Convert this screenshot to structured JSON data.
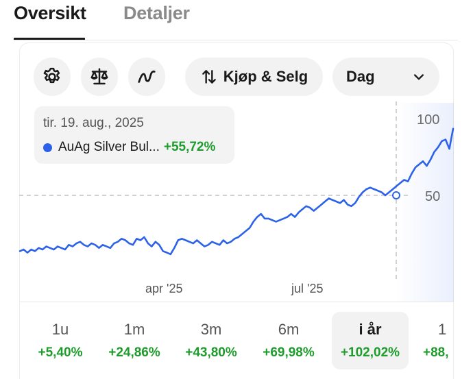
{
  "tabs": [
    {
      "label": "Oversikt",
      "active": true
    },
    {
      "label": "Detaljer",
      "active": false
    }
  ],
  "toolbar": {
    "settings_icon": "gear-icon",
    "indicator_icon": "scale-icon",
    "chart_type_icon": "line-chart-icon",
    "trade_label": "Kjøp & Selg",
    "trade_icon": "swap-arrows-icon",
    "period_label": "Dag",
    "period_icon": "chevron-down-icon"
  },
  "tooltip": {
    "date": "tir. 19. aug., 2025",
    "series_name": "AuAg Silver Bul...",
    "change": "+55,72%",
    "series_color": "#2c62e8"
  },
  "colors": {
    "line": "#2c62e8",
    "positive": "#1e9c2c"
  },
  "chart_data": {
    "type": "line",
    "x_ticks": [
      "apr '25",
      "jul '25"
    ],
    "y_ticks": [
      50,
      100
    ],
    "crosshair": {
      "date": "tir. 19. aug., 2025",
      "value": 50
    },
    "series": [
      {
        "name": "AuAg Silver Bul...",
        "values": [
          14,
          15,
          13,
          15,
          14,
          16,
          15,
          17,
          16,
          15,
          17,
          16,
          15,
          18,
          17,
          19,
          20,
          18,
          17,
          19,
          18,
          16,
          18,
          17,
          16,
          19,
          20,
          22,
          21,
          19,
          18,
          22,
          21,
          23,
          19,
          17,
          20,
          18,
          14,
          13,
          12,
          16,
          21,
          22,
          21,
          20,
          19,
          21,
          19,
          17,
          18,
          20,
          19,
          18,
          21,
          19,
          20,
          22,
          23,
          25,
          27,
          29,
          33,
          36,
          38,
          35,
          35,
          34,
          33,
          34,
          35,
          36,
          38,
          36,
          39,
          41,
          43,
          42,
          40,
          42,
          44,
          46,
          48,
          47,
          46,
          45,
          47,
          44,
          43,
          45,
          49,
          52,
          54,
          55,
          54,
          53,
          52,
          50,
          52,
          54,
          56,
          58,
          60,
          59,
          64,
          68,
          70,
          72,
          69,
          73,
          78,
          81,
          85,
          86,
          80,
          93
        ]
      }
    ]
  },
  "periods": [
    {
      "label": "1u",
      "change": "+5,40%",
      "selected": false
    },
    {
      "label": "1m",
      "change": "+24,86%",
      "selected": false
    },
    {
      "label": "3m",
      "change": "+43,80%",
      "selected": false
    },
    {
      "label": "6m",
      "change": "+69,98%",
      "selected": false
    },
    {
      "label": "i år",
      "change": "+102,02%",
      "selected": true
    },
    {
      "label": "1",
      "change": "+88,",
      "selected": false
    }
  ]
}
